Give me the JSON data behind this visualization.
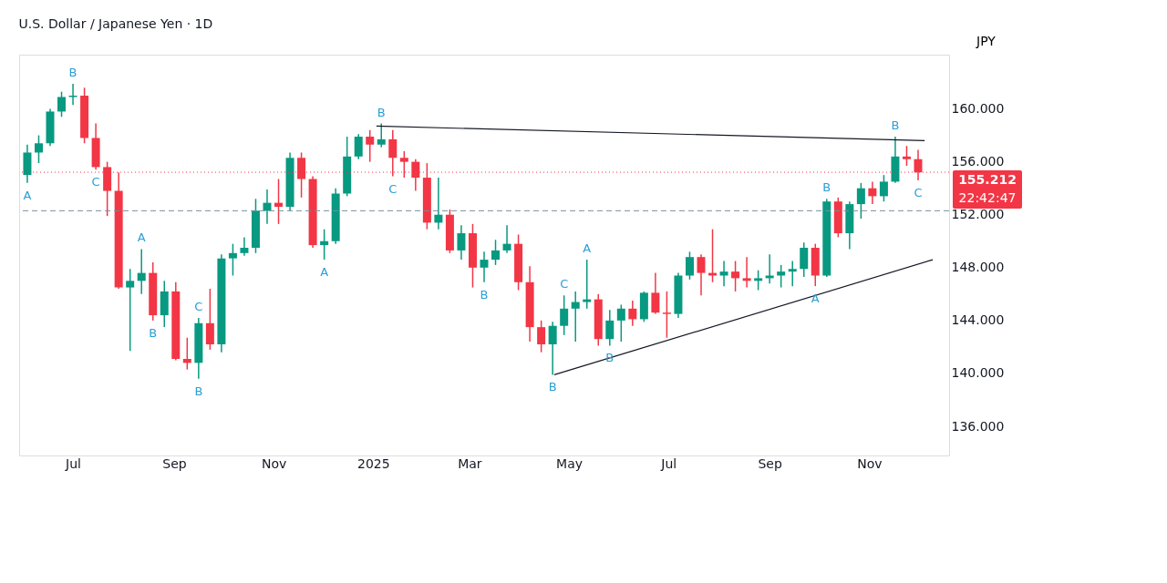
{
  "chart_data": {
    "type": "candlestick",
    "title": "U.S. Dollar / Japanese Yen · 1D",
    "ylabel": "JPY",
    "x": [
      "2024-06-03",
      "2024-06-10",
      "2024-06-17",
      "2024-06-24",
      "2024-07-01",
      "2024-07-08",
      "2024-07-15",
      "2024-07-22",
      "2024-07-29",
      "2024-08-05",
      "2024-08-12",
      "2024-08-19",
      "2024-08-26",
      "2024-09-02",
      "2024-09-09",
      "2024-09-16",
      "2024-09-23",
      "2024-09-30",
      "2024-10-07",
      "2024-10-14",
      "2024-10-21",
      "2024-10-28",
      "2024-11-04",
      "2024-11-11",
      "2024-11-18",
      "2024-11-25",
      "2024-12-02",
      "2024-12-09",
      "2024-12-16",
      "2024-12-23",
      "2024-12-30",
      "2025-01-06",
      "2025-01-13",
      "2025-01-20",
      "2025-01-27",
      "2025-02-03",
      "2025-02-10",
      "2025-02-17",
      "2025-02-24",
      "2025-03-03",
      "2025-03-10",
      "2025-03-17",
      "2025-03-24",
      "2025-03-31",
      "2025-04-07",
      "2025-04-14",
      "2025-04-21",
      "2025-04-28",
      "2025-05-05",
      "2025-05-12",
      "2025-05-19",
      "2025-05-26",
      "2025-06-02",
      "2025-06-09",
      "2025-06-16",
      "2025-06-23",
      "2025-06-30",
      "2025-07-07",
      "2025-07-14",
      "2025-07-21",
      "2025-07-28",
      "2025-08-04",
      "2025-08-11",
      "2025-08-18",
      "2025-08-25",
      "2025-09-01",
      "2025-09-08",
      "2025-09-15",
      "2025-09-22",
      "2025-09-29",
      "2025-10-06",
      "2025-10-13",
      "2025-10-20",
      "2025-10-27",
      "2025-11-03",
      "2025-11-10",
      "2025-11-17",
      "2025-11-24",
      "2025-12-01"
    ],
    "ohlc": [
      [
        155.0,
        157.3,
        154.4,
        156.7
      ],
      [
        156.7,
        158.0,
        155.9,
        157.4
      ],
      [
        157.4,
        160.0,
        157.2,
        159.8
      ],
      [
        159.8,
        161.3,
        159.4,
        160.9
      ],
      [
        160.9,
        161.9,
        160.3,
        161.0
      ],
      [
        161.0,
        161.6,
        157.4,
        157.8
      ],
      [
        157.8,
        158.9,
        155.4,
        155.6
      ],
      [
        155.6,
        156.0,
        151.9,
        153.8
      ],
      [
        153.8,
        155.2,
        146.4,
        146.5
      ],
      [
        146.5,
        147.9,
        141.7,
        147.0
      ],
      [
        147.0,
        149.4,
        146.0,
        147.6
      ],
      [
        147.6,
        148.4,
        144.0,
        144.4
      ],
      [
        144.4,
        147.0,
        143.5,
        146.2
      ],
      [
        146.2,
        146.9,
        141.0,
        141.1
      ],
      [
        141.1,
        142.7,
        140.3,
        140.8
      ],
      [
        140.8,
        144.2,
        139.6,
        143.8
      ],
      [
        143.8,
        146.4,
        141.8,
        142.2
      ],
      [
        142.2,
        149.0,
        141.6,
        148.7
      ],
      [
        148.7,
        149.8,
        147.4,
        149.1
      ],
      [
        149.1,
        150.3,
        148.9,
        149.5
      ],
      [
        149.5,
        153.2,
        149.1,
        152.3
      ],
      [
        152.3,
        153.9,
        151.3,
        152.9
      ],
      [
        152.9,
        154.7,
        151.3,
        152.6
      ],
      [
        152.6,
        156.7,
        152.3,
        156.3
      ],
      [
        156.3,
        156.7,
        153.3,
        154.7
      ],
      [
        154.7,
        154.9,
        149.5,
        149.7
      ],
      [
        149.7,
        150.9,
        148.6,
        150.0
      ],
      [
        150.0,
        154.0,
        149.8,
        153.6
      ],
      [
        153.6,
        157.9,
        153.4,
        156.4
      ],
      [
        156.4,
        158.1,
        156.2,
        157.9
      ],
      [
        157.9,
        158.4,
        156.0,
        157.3
      ],
      [
        157.3,
        158.9,
        157.1,
        157.7
      ],
      [
        157.7,
        158.4,
        154.9,
        156.3
      ],
      [
        156.3,
        156.8,
        154.8,
        156.0
      ],
      [
        156.0,
        156.2,
        153.8,
        154.8
      ],
      [
        154.8,
        155.9,
        150.9,
        151.4
      ],
      [
        151.4,
        154.8,
        150.9,
        152.0
      ],
      [
        152.0,
        152.4,
        149.1,
        149.3
      ],
      [
        149.3,
        151.2,
        148.6,
        150.6
      ],
      [
        150.6,
        151.3,
        146.5,
        148.0
      ],
      [
        148.0,
        149.2,
        146.9,
        148.6
      ],
      [
        148.6,
        150.1,
        148.2,
        149.3
      ],
      [
        149.3,
        151.2,
        149.1,
        149.8
      ],
      [
        149.8,
        150.5,
        146.3,
        146.9
      ],
      [
        146.9,
        148.1,
        142.4,
        143.5
      ],
      [
        143.5,
        144.0,
        141.6,
        142.2
      ],
      [
        142.2,
        143.9,
        139.9,
        143.6
      ],
      [
        143.6,
        145.9,
        142.9,
        144.9
      ],
      [
        144.9,
        146.2,
        142.4,
        145.4
      ],
      [
        145.4,
        148.6,
        144.9,
        145.6
      ],
      [
        145.6,
        146.0,
        142.1,
        142.6
      ],
      [
        142.6,
        144.8,
        142.1,
        144.0
      ],
      [
        144.0,
        145.2,
        142.4,
        144.9
      ],
      [
        144.9,
        145.5,
        143.6,
        144.1
      ],
      [
        144.1,
        146.2,
        143.9,
        146.1
      ],
      [
        146.1,
        147.6,
        144.5,
        144.6
      ],
      [
        144.6,
        146.2,
        142.7,
        144.5
      ],
      [
        144.5,
        147.6,
        144.2,
        147.4
      ],
      [
        147.4,
        149.2,
        147.1,
        148.8
      ],
      [
        148.8,
        149.0,
        145.9,
        147.6
      ],
      [
        147.6,
        150.9,
        146.9,
        147.4
      ],
      [
        147.4,
        148.5,
        146.6,
        147.7
      ],
      [
        147.7,
        148.5,
        146.2,
        147.2
      ],
      [
        147.2,
        148.8,
        146.5,
        147.0
      ],
      [
        147.0,
        147.8,
        146.3,
        147.2
      ],
      [
        147.2,
        149.0,
        146.8,
        147.4
      ],
      [
        147.4,
        148.2,
        146.5,
        147.7
      ],
      [
        147.7,
        148.5,
        146.6,
        147.9
      ],
      [
        147.9,
        149.9,
        147.3,
        149.5
      ],
      [
        149.5,
        149.8,
        146.6,
        147.4
      ],
      [
        147.4,
        153.2,
        147.3,
        153.0
      ],
      [
        153.0,
        153.3,
        150.3,
        150.6
      ],
      [
        150.6,
        153.0,
        149.4,
        152.8
      ],
      [
        152.8,
        154.4,
        151.7,
        154.0
      ],
      [
        154.0,
        154.5,
        152.8,
        153.4
      ],
      [
        153.4,
        155.0,
        153.0,
        154.5
      ],
      [
        154.5,
        157.9,
        154.4,
        156.4
      ],
      [
        156.4,
        157.2,
        155.7,
        156.2
      ],
      [
        156.2,
        156.9,
        154.6,
        155.2
      ]
    ],
    "colors": [
      "#089981",
      "#089981",
      "#089981",
      "#089981",
      "#089981",
      "#f23645",
      "#f23645",
      "#f23645",
      "#f23645",
      "#089981",
      "#089981",
      "#f23645",
      "#089981",
      "#f23645",
      "#f23645",
      "#089981",
      "#f23645",
      "#089981",
      "#089981",
      "#089981",
      "#089981",
      "#089981",
      "#f23645",
      "#089981",
      "#f23645",
      "#f23645",
      "#089981",
      "#089981",
      "#089981",
      "#089981",
      "#f23645",
      "#089981",
      "#f23645",
      "#f23645",
      "#f23645",
      "#f23645",
      "#089981",
      "#f23645",
      "#089981",
      "#f23645",
      "#089981",
      "#089981",
      "#089981",
      "#f23645",
      "#f23645",
      "#f23645",
      "#089981",
      "#089981",
      "#089981",
      "#089981",
      "#f23645",
      "#089981",
      "#089981",
      "#f23645",
      "#089981",
      "#f23645",
      "#f23645",
      "#089981",
      "#089981",
      "#f23645",
      "#f23645",
      "#089981",
      "#f23645",
      "#f23645",
      "#089981",
      "#089981",
      "#089981",
      "#089981",
      "#089981",
      "#f23645",
      "#089981",
      "#f23645",
      "#089981",
      "#089981",
      "#f23645",
      "#089981",
      "#089981",
      "#f23645",
      "#f23645"
    ],
    "series": [
      {
        "type": "line",
        "color": "#131722",
        "x": [
          "2025-01-03",
          "2025-12-05"
        ],
        "values": [
          158.7,
          157.6
        ]
      },
      {
        "type": "line",
        "color": "#131722",
        "x": [
          "2025-04-22",
          "2025-12-10"
        ],
        "values": [
          139.9,
          148.6
        ]
      }
    ],
    "xlim": [
      "2024-05-29",
      "2025-12-20"
    ],
    "xticks": [
      {
        "value": "2024-07-01",
        "label": "Jul"
      },
      {
        "value": "2024-09-01",
        "label": "Sep"
      },
      {
        "value": "2024-11-01",
        "label": "Nov"
      },
      {
        "value": "2025-01-01",
        "label": "2025"
      },
      {
        "value": "2025-03-01",
        "label": "Mar"
      },
      {
        "value": "2025-05-01",
        "label": "May"
      },
      {
        "value": "2025-07-01",
        "label": "Jul"
      },
      {
        "value": "2025-09-01",
        "label": "Sep"
      },
      {
        "value": "2025-11-01",
        "label": "Nov"
      }
    ],
    "ylim": [
      133.8,
      164.1
    ],
    "yticks": [
      {
        "value": 136,
        "label": "136.000"
      },
      {
        "value": 140,
        "label": "140.000"
      },
      {
        "value": 144,
        "label": "144.000"
      },
      {
        "value": 148,
        "label": "148.000"
      },
      {
        "value": 152,
        "label": "152.000"
      },
      {
        "value": 156,
        "label": "156.000"
      },
      {
        "value": 160,
        "label": "160.000"
      }
    ],
    "ref_lines": [
      {
        "axis": "y",
        "value": 155.212,
        "label": "155.212",
        "color": "#f23645",
        "line_style": "dotted"
      },
      {
        "axis": "y",
        "value": 152.3,
        "label": null,
        "color": "#78909c",
        "line_style": "dashed"
      }
    ],
    "annotations": [
      "22:42:47",
      {
        "text": "B",
        "x": "2024-07-01",
        "y": 161.9
      },
      {
        "text": "A",
        "x": "2024-06-03",
        "y": 154.4
      },
      {
        "text": "C",
        "x": "2024-07-15",
        "y": 155.4
      },
      {
        "text": "A",
        "x": "2024-08-12",
        "y": 149.4
      },
      {
        "text": "C",
        "x": "2024-09-16",
        "y": 144.2
      },
      {
        "text": "B",
        "x": "2024-08-19",
        "y": 144.0
      },
      {
        "text": "B",
        "x": "2024-09-16",
        "y": 139.6
      },
      {
        "text": "B",
        "x": "2025-01-06",
        "y": 158.9
      },
      {
        "text": "A",
        "x": "2024-12-02",
        "y": 148.6
      },
      {
        "text": "C",
        "x": "2025-01-13",
        "y": 154.9
      },
      {
        "text": "B",
        "x": "2025-03-10",
        "y": 146.9
      },
      {
        "text": "B",
        "x": "2025-04-21",
        "y": 139.9
      },
      {
        "text": "A",
        "x": "2025-05-12",
        "y": 148.6
      },
      {
        "text": "C",
        "x": "2025-04-28",
        "y": 145.9
      },
      {
        "text": "B",
        "x": "2025-05-26",
        "y": 142.1
      },
      {
        "text": "B",
        "x": "2025-10-06",
        "y": 153.2
      },
      {
        "text": "A",
        "x": "2025-09-29",
        "y": 146.6
      },
      {
        "text": "B",
        "x": "2025-11-17",
        "y": 157.9
      },
      {
        "text": "C",
        "x": "2025-12-01",
        "y": 154.6
      }
    ],
    "grid": false
  }
}
